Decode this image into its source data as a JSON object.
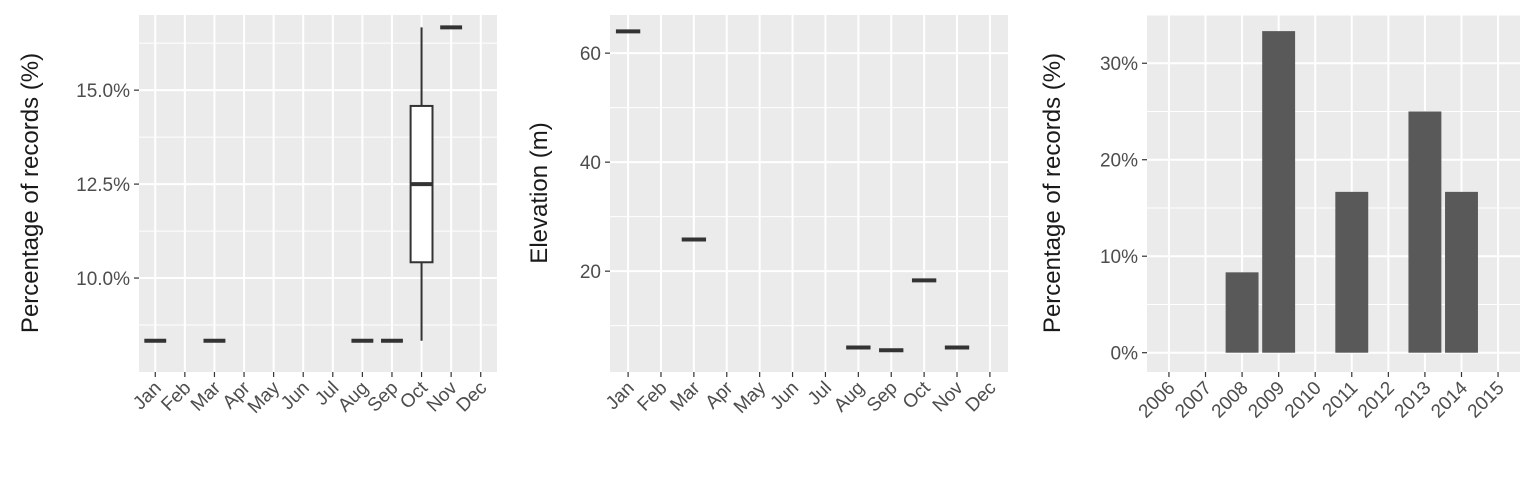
{
  "chart_data": [
    {
      "type": "box",
      "ylabel": "Percentage of records (%)",
      "categories": [
        "Jan",
        "Feb",
        "Mar",
        "Apr",
        "May",
        "Jun",
        "Jul",
        "Aug",
        "Sep",
        "Oct",
        "Nov",
        "Dec"
      ],
      "ylim": [
        7.5,
        17.0
      ],
      "yticks": [
        10,
        12.5,
        15
      ],
      "ytick_labels": [
        "10.0%",
        "12.5%",
        "15.0%"
      ],
      "grid": true,
      "boxes": [
        {
          "category": "Jan",
          "min": 8.33,
          "q1": 8.33,
          "median": 8.33,
          "q3": 8.33,
          "max": 8.33
        },
        {
          "category": "Mar",
          "min": 8.33,
          "q1": 8.33,
          "median": 8.33,
          "q3": 8.33,
          "max": 8.33
        },
        {
          "category": "Aug",
          "min": 8.33,
          "q1": 8.33,
          "median": 8.33,
          "q3": 8.33,
          "max": 8.33
        },
        {
          "category": "Sep",
          "min": 8.33,
          "q1": 8.33,
          "median": 8.33,
          "q3": 8.33,
          "max": 8.33
        },
        {
          "category": "Oct",
          "min": 8.33,
          "q1": 10.42,
          "median": 12.5,
          "q3": 14.58,
          "max": 16.67
        },
        {
          "category": "Nov",
          "min": 16.67,
          "q1": 16.67,
          "median": 16.67,
          "q3": 16.67,
          "max": 16.67
        }
      ]
    },
    {
      "type": "box",
      "ylabel": "Elevation (m)",
      "categories": [
        "Jan",
        "Feb",
        "Mar",
        "Apr",
        "May",
        "Jun",
        "Jul",
        "Aug",
        "Sep",
        "Oct",
        "Nov",
        "Dec"
      ],
      "ylim": [
        1.5,
        67
      ],
      "yticks": [
        20,
        40,
        60
      ],
      "ytick_labels": [
        "20",
        "40",
        "60"
      ],
      "grid": true,
      "boxes": [
        {
          "category": "Jan",
          "min": 64,
          "q1": 64,
          "median": 64,
          "q3": 64,
          "max": 64
        },
        {
          "category": "Mar",
          "min": 25.8,
          "q1": 25.8,
          "median": 25.8,
          "q3": 25.8,
          "max": 25.8
        },
        {
          "category": "Aug",
          "min": 6,
          "q1": 6,
          "median": 6,
          "q3": 6,
          "max": 6
        },
        {
          "category": "Sep",
          "min": 5.5,
          "q1": 5.5,
          "median": 5.5,
          "q3": 5.5,
          "max": 5.5
        },
        {
          "category": "Oct",
          "min": 18.3,
          "q1": 18.3,
          "median": 18.3,
          "q3": 18.3,
          "max": 18.3
        },
        {
          "category": "Nov",
          "min": 6,
          "q1": 6,
          "median": 6,
          "q3": 6,
          "max": 6
        }
      ]
    },
    {
      "type": "bar",
      "ylabel": "Percentage of records (%)",
      "categories": [
        "2006",
        "2007",
        "2008",
        "2009",
        "2010",
        "2011",
        "2012",
        "2013",
        "2014",
        "2015"
      ],
      "values": [
        0,
        0,
        8.33,
        33.33,
        0,
        16.67,
        0,
        25,
        16.67,
        0
      ],
      "ylim": [
        -2,
        35
      ],
      "yticks": [
        0,
        10,
        20,
        30
      ],
      "ytick_labels": [
        "0%",
        "10%",
        "20%",
        "30%"
      ],
      "grid": true
    }
  ],
  "style": {
    "panel_bg": "#ebebeb",
    "grid_color": "#ffffff",
    "bar_fill": "#595959",
    "line_color": "#333333",
    "tick_text": "#4d4d4d",
    "title_text": "#1a1a1a"
  }
}
